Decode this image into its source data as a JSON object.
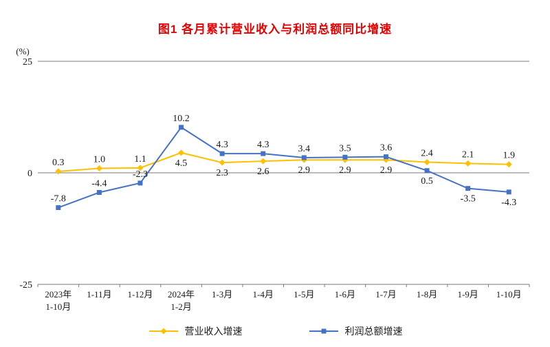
{
  "page": {
    "title": "图1 各月累计营业收入与利润总额同比增速",
    "title_color": "#e60000"
  },
  "chart_data": {
    "type": "line",
    "title": "图1 各月累计营业收入与利润总额同比增速",
    "unit_label": "(%)",
    "categories": [
      "2023年\n1-10月",
      "1-11月",
      "1-12月",
      "2024年\n1-2月",
      "1-3月",
      "1-4月",
      "1-5月",
      "1-6月",
      "1-7月",
      "1-8月",
      "1-9月",
      "1-10月"
    ],
    "series": [
      {
        "name": "营业收入增速",
        "color": "#FFC000",
        "marker": "diamond",
        "values": [
          0.3,
          1.0,
          1.1,
          4.5,
          2.3,
          2.6,
          2.9,
          2.9,
          2.9,
          2.4,
          2.1,
          1.9
        ],
        "label_position": [
          "above",
          "above",
          "above",
          "below",
          "below",
          "below",
          "below",
          "below",
          "below",
          "above",
          "above",
          "above"
        ]
      },
      {
        "name": "利润总额增速",
        "color": "#4472C4",
        "marker": "square",
        "values": [
          -7.8,
          -4.4,
          -2.3,
          10.2,
          4.3,
          4.3,
          3.4,
          3.5,
          3.6,
          0.5,
          -3.5,
          -4.3
        ],
        "label_position": [
          "above",
          "above",
          "above",
          "above",
          "above",
          "above",
          "above",
          "above",
          "above",
          "below",
          "below",
          "below"
        ]
      }
    ],
    "ylim": [
      -25,
      25
    ],
    "yticks": [
      25,
      0,
      -25
    ],
    "grid": false,
    "legend_position": "bottom",
    "axis_color": "#7a7a7a",
    "text_color": "#1a1a1a"
  }
}
